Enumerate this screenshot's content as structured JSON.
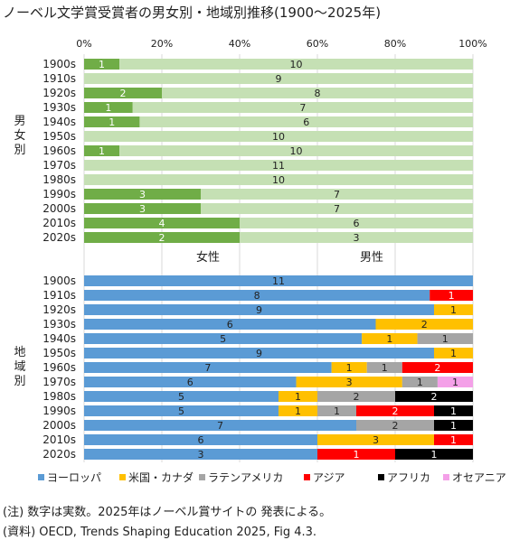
{
  "title": "ノーベル文学賞受賞者の男女別・地域別推移(1900～2025年)",
  "chart_data": [
    {
      "type": "bar",
      "orientation": "horizontal",
      "stacked": "percent",
      "group_label": "男女別",
      "xlim": [
        0,
        100
      ],
      "x_ticks": [
        "0%",
        "20%",
        "40%",
        "60%",
        "80%",
        "100%"
      ],
      "categories": [
        "1900s",
        "1910s",
        "1920s",
        "1930s",
        "1940s",
        "1950s",
        "1960s",
        "1970s",
        "1980s",
        "1990s",
        "2000s",
        "2010s",
        "2020s"
      ],
      "series": [
        {
          "name": "女性",
          "color": "#70ad47",
          "values": [
            1,
            0,
            2,
            1,
            1,
            0,
            1,
            0,
            0,
            3,
            3,
            4,
            2
          ]
        },
        {
          "name": "男性",
          "color": "#c5e0b4",
          "values": [
            10,
            9,
            8,
            7,
            6,
            10,
            10,
            11,
            10,
            7,
            7,
            6,
            3
          ]
        }
      ],
      "legend": "bottom",
      "grid": true
    },
    {
      "type": "bar",
      "orientation": "horizontal",
      "stacked": "percent",
      "group_label": "地域別",
      "xlim": [
        0,
        100
      ],
      "categories": [
        "1900s",
        "1910s",
        "1920s",
        "1930s",
        "1940s",
        "1950s",
        "1960s",
        "1970s",
        "1980s",
        "1990s",
        "2000s",
        "2010s",
        "2020s"
      ],
      "series": [
        {
          "name": "ヨーロッパ",
          "color": "#5b9bd5",
          "values": [
            11,
            8,
            9,
            6,
            5,
            9,
            7,
            6,
            5,
            5,
            7,
            6,
            3
          ]
        },
        {
          "name": "米国・カナダ",
          "color": "#ffc000",
          "values": [
            0,
            0,
            1,
            2,
            1,
            1,
            1,
            3,
            1,
            1,
            0,
            3,
            0
          ]
        },
        {
          "name": "ラテンアメリカ",
          "color": "#a5a5a5",
          "values": [
            0,
            0,
            0,
            0,
            1,
            0,
            1,
            1,
            2,
            1,
            2,
            0,
            0
          ]
        },
        {
          "name": "アジア",
          "color": "#ff0000",
          "values": [
            0,
            1,
            0,
            0,
            0,
            0,
            2,
            0,
            0,
            2,
            0,
            1,
            1
          ]
        },
        {
          "name": "アフリカ",
          "color": "#000000",
          "values": [
            0,
            0,
            0,
            0,
            0,
            0,
            0,
            0,
            2,
            1,
            1,
            0,
            1
          ]
        },
        {
          "name": "オセアニア",
          "color": "#f4a0e8",
          "values": [
            0,
            0,
            0,
            0,
            0,
            0,
            0,
            1,
            0,
            0,
            0,
            0,
            0
          ]
        }
      ],
      "legend": "bottom",
      "grid": true
    }
  ],
  "notes": [
    "(注) 数字は実数。2025年はノーベル賞サイトの 発表による。",
    "(資料) OECD, Trends Shaping Education 2025, Fig 4.3."
  ]
}
